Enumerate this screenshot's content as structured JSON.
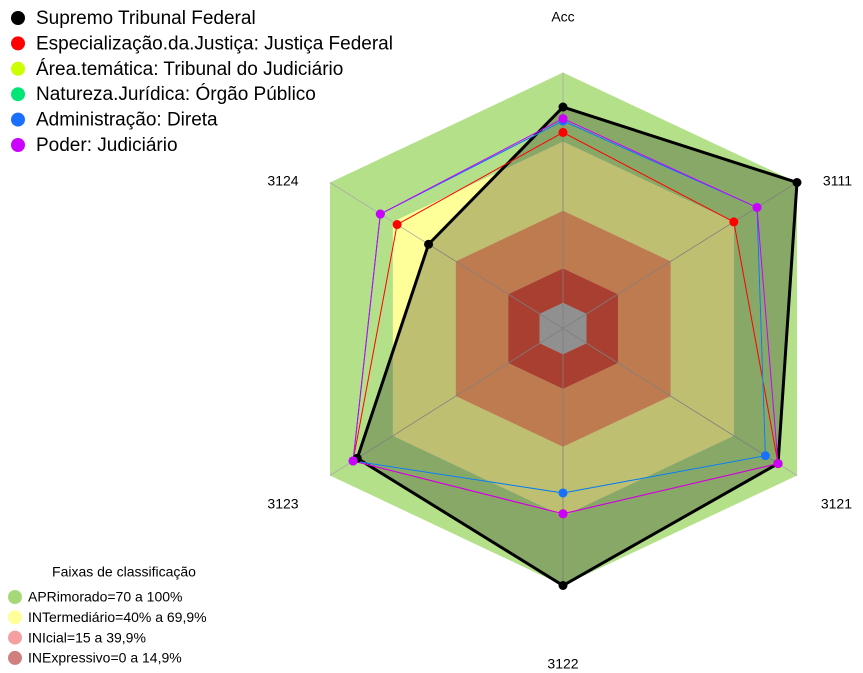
{
  "chart_data": {
    "type": "radar",
    "categories": [
      "Acc",
      "3111",
      "3121",
      "3122",
      "3123",
      "3124"
    ],
    "rlim": [
      0,
      100
    ],
    "series": [
      {
        "name": "Supremo Tribunal Federal",
        "color": "#000000",
        "fill_opacity": 0.25,
        "values": [
          85,
          100,
          91,
          100,
          87,
          53
        ]
      },
      {
        "name": "Especialização.da.Justiça: Justiça Federal",
        "color": "#ff0000",
        "values": [
          74,
          70,
          91,
          69,
          89,
          68
        ]
      },
      {
        "name": "Área.temática: Tribunal do Judiciário",
        "color": "#ccff00",
        "values": [
          79,
          81,
          85,
          60,
          89,
          76
        ]
      },
      {
        "name": "Natureza.Jurídica: Órgão Público",
        "color": "#00e676",
        "values": [
          79,
          81,
          85,
          60,
          89,
          76
        ]
      },
      {
        "name": "Administração: Direta",
        "color": "#1a6fff",
        "values": [
          79,
          81,
          85,
          60,
          89,
          76
        ]
      },
      {
        "name": "Poder: Judiciário",
        "color": "#cc00ff",
        "values": [
          80,
          81,
          91,
          69,
          89,
          76
        ]
      }
    ],
    "bands_title": "Faixas de classificação",
    "bands": [
      {
        "label": "APRimorado=70 a 100%",
        "from": 70,
        "color": "#a6d877",
        "fill": "#b5e08a"
      },
      {
        "label": "INTermediário=40% a 69,9%",
        "from": 40,
        "color": "#ffff99",
        "fill": "#ffff99"
      },
      {
        "label": "INIcial=15 a 39,9%",
        "from": 15,
        "color": "#f4a0a0",
        "fill": "#ffa56b"
      },
      {
        "label": "INExpressivo=0 a 14,9%",
        "from": 0,
        "color": "#d07f7f",
        "fill": "#e05540"
      }
    ]
  }
}
